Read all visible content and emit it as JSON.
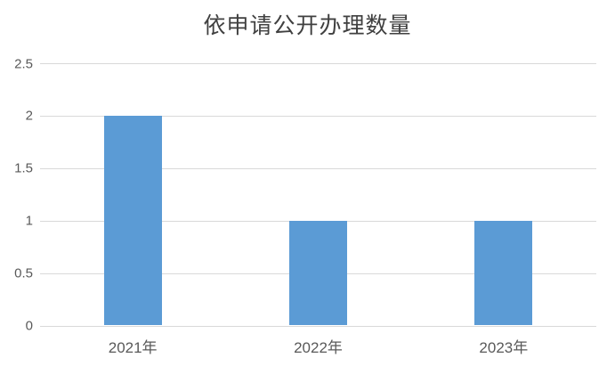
{
  "chart_data": {
    "type": "bar",
    "title": "依申请公开办理数量",
    "categories": [
      "2021年",
      "2022年",
      "2023年"
    ],
    "values": [
      2,
      1,
      1
    ],
    "xlabel": "",
    "ylabel": "",
    "ylim": [
      0,
      2.5
    ],
    "y_ticks": [
      0,
      0.5,
      1,
      1.5,
      2,
      2.5
    ],
    "grid": "horizontal",
    "legend": "none",
    "colors": {
      "bar": "#5B9BD5",
      "gridline": "#d9d9d9",
      "axis_line": "#d9d9d9",
      "tick_text": "#595959",
      "title_text": "#404040",
      "background": "#ffffff"
    }
  }
}
